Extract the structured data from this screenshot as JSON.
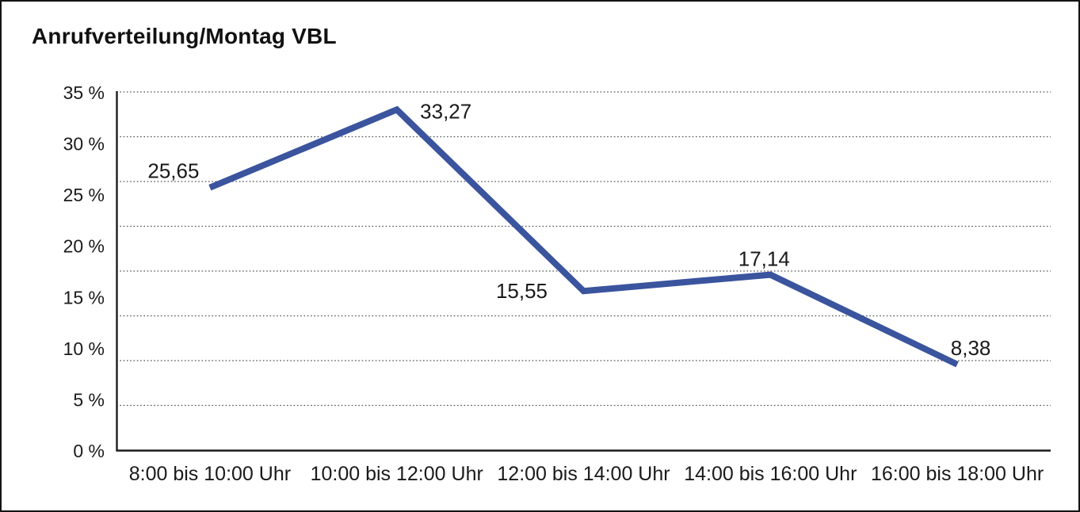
{
  "frame": {
    "title": "Anrufverteilung/Montag VBL"
  },
  "chart_data": {
    "type": "line",
    "title": "Anrufverteilung/Montag VBL",
    "categories": [
      "8:00 bis 10:00 Uhr",
      "10:00 bis 12:00 Uhr",
      "12:00 bis 14:00 Uhr",
      "14:00 bis 16:00 Uhr",
      "16:00 bis 18:00 Uhr"
    ],
    "values": [
      25.65,
      33.27,
      15.55,
      17.14,
      8.38
    ],
    "value_labels": [
      "25,65",
      "33,27",
      "15,55",
      "17,14",
      "8,38"
    ],
    "yticks": [
      35,
      30,
      25,
      20,
      15,
      10,
      5,
      0
    ],
    "ytick_labels": [
      "35 %",
      "30 %",
      "25 %",
      "20 %",
      "15 %",
      "10 %",
      "5 %",
      "0 %"
    ],
    "ylim": [
      0,
      35
    ],
    "xlabel": "",
    "ylabel": "",
    "legend": "none",
    "grid": {
      "horizontal": true,
      "style": "dotted",
      "divisions": 8
    },
    "colors": {
      "line": "#3A549E",
      "axis": "#1c1c1c",
      "gridline": "#3c3c3c",
      "text": "#1a1a1a"
    }
  }
}
